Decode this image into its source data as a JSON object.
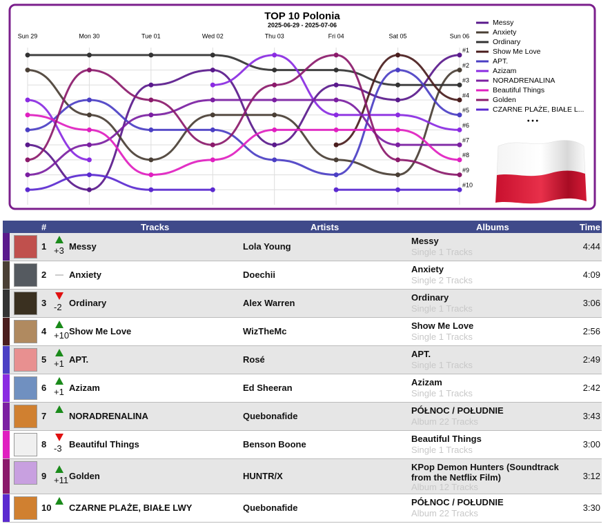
{
  "chart_data": {
    "type": "bump",
    "title": "TOP 10 Polonia",
    "subtitle": "2025-06-29 - 2025-07-06",
    "categories": [
      "Sun 29",
      "Mon 30",
      "Tue 01",
      "Wed 02",
      "Thu 03",
      "Fri 04",
      "Sat 05",
      "Sun 06"
    ],
    "ylim": [
      11,
      0.5
    ],
    "yticks": [
      {
        "value": 1,
        "label": "#1"
      },
      {
        "value": 2,
        "label": "#2"
      },
      {
        "value": 3,
        "label": "#3"
      },
      {
        "value": 4,
        "label": "#4"
      },
      {
        "value": 5,
        "label": "#5"
      },
      {
        "value": 6,
        "label": "#6"
      },
      {
        "value": 7,
        "label": "#7"
      },
      {
        "value": 8,
        "label": "#8"
      },
      {
        "value": 9,
        "label": "#9"
      },
      {
        "value": 10,
        "label": "#10"
      }
    ],
    "grid": true,
    "legend_more": "• • •",
    "series": [
      {
        "name": "Messy",
        "color": "#5a1a8c",
        "values": [
          7,
          10,
          3,
          2,
          7,
          3,
          4,
          1
        ]
      },
      {
        "name": "Anxiety",
        "color": "#4a3f35",
        "values": [
          2,
          5,
          8,
          5,
          5,
          8,
          9,
          2
        ]
      },
      {
        "name": "Ordinary",
        "color": "#333333",
        "values": [
          1,
          1,
          1,
          1,
          2,
          2,
          3,
          3
        ]
      },
      {
        "name": "Show Me Love",
        "color": "#4a1d1d",
        "values": [
          null,
          null,
          null,
          null,
          null,
          7,
          1,
          4
        ]
      },
      {
        "name": "APT.",
        "color": "#4b3fc4",
        "values": [
          6,
          4,
          6,
          6,
          8,
          9,
          2,
          5
        ]
      },
      {
        "name": "Azizam",
        "color": "#8a2be2",
        "values": [
          4,
          8,
          null,
          3,
          1,
          5,
          5,
          6
        ]
      },
      {
        "name": "NORADRENALINA",
        "color": "#7b1fa2",
        "values": [
          9,
          7,
          5,
          4,
          4,
          4,
          7,
          7
        ]
      },
      {
        "name": "Beautiful Things",
        "color": "#e020c0",
        "values": [
          5,
          6,
          9,
          8,
          6,
          6,
          6,
          8
        ]
      },
      {
        "name": "Golden",
        "color": "#8b1a6b",
        "values": [
          8,
          2,
          4,
          7,
          3,
          1,
          8,
          9
        ]
      },
      {
        "name": "CZARNE PLAŻE, BIAŁE L...",
        "color": "#5b2ad0",
        "values": [
          10,
          9,
          10,
          10,
          null,
          10,
          10,
          10
        ]
      }
    ]
  },
  "table": {
    "columns": [
      "#",
      "Tracks",
      "Artists",
      "Albums",
      "Time"
    ],
    "rows": [
      {
        "rank": "1",
        "trend": "up",
        "change": "+3",
        "track": "Messy",
        "artist": "Lola Young",
        "album": "Messy",
        "album_info": "Single 1 Tracks",
        "time": "4:44"
      },
      {
        "rank": "2",
        "trend": "same",
        "change": "",
        "track": "Anxiety",
        "artist": "Doechii",
        "album": "Anxiety",
        "album_info": "Single 2 Tracks",
        "time": "4:09"
      },
      {
        "rank": "3",
        "trend": "down",
        "change": "-2",
        "track": "Ordinary",
        "artist": "Alex Warren",
        "album": "Ordinary",
        "album_info": "Single 1 Tracks",
        "time": "3:06"
      },
      {
        "rank": "4",
        "trend": "up",
        "change": "+10",
        "track": "Show Me Love",
        "artist": "WizTheMc",
        "album": "Show Me Love",
        "album_info": "Single 1 Tracks",
        "time": "2:56"
      },
      {
        "rank": "5",
        "trend": "up",
        "change": "+1",
        "track": "APT.",
        "artist": "Rosé",
        "album": "APT.",
        "album_info": "Single 1 Tracks",
        "time": "2:49"
      },
      {
        "rank": "6",
        "trend": "up",
        "change": "+1",
        "track": "Azizam",
        "artist": "Ed Sheeran",
        "album": "Azizam",
        "album_info": "Single 1 Tracks",
        "time": "2:42"
      },
      {
        "rank": "7",
        "trend": "up",
        "change": "",
        "track": "NORADRENALINA",
        "artist": "Quebonafide",
        "album": "PÓŁNOC / POŁUDNIE",
        "album_info": "Album 22 Tracks",
        "time": "3:43"
      },
      {
        "rank": "8",
        "trend": "down",
        "change": "-3",
        "track": "Beautiful Things",
        "artist": "Benson Boone",
        "album": "Beautiful Things",
        "album_info": "Single 1 Tracks",
        "time": "3:00"
      },
      {
        "rank": "9",
        "trend": "up",
        "change": "+11",
        "track": "Golden",
        "artist": "HUNTR/X",
        "album": "KPop Demon Hunters (Soundtrack from the Netflix Film)",
        "album_info": "Album 12 Tracks",
        "time": "3:12"
      },
      {
        "rank": "10",
        "trend": "up",
        "change": "",
        "track": "CZARNE PLAŻE, BIAŁE LWY",
        "artist": "Quebonafide",
        "album": "PÓŁNOC / POŁUDNIE",
        "album_info": "Album 22 Tracks",
        "time": "3:30"
      }
    ]
  }
}
